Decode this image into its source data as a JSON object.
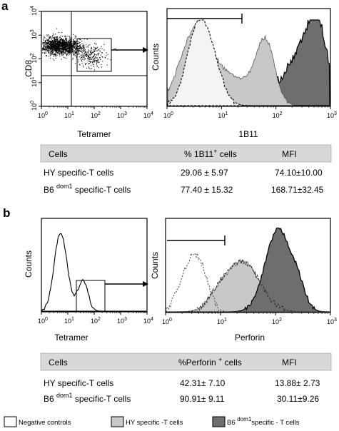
{
  "panel_a": {
    "letter": "a",
    "dotplot": {
      "ylabel": "CD8",
      "xlabel": "Tetramer",
      "x_ticks": [
        {
          "base": "10",
          "exp": "0"
        },
        {
          "base": "10",
          "exp": "1"
        },
        {
          "base": "10",
          "exp": "2"
        },
        {
          "base": "10",
          "exp": "3"
        },
        {
          "base": "10",
          "exp": "4"
        }
      ],
      "y_ticks": [
        {
          "base": "10",
          "exp": "0"
        },
        {
          "base": "10",
          "exp": "1"
        },
        {
          "base": "10",
          "exp": "2"
        },
        {
          "base": "10",
          "exp": "3"
        },
        {
          "base": "10",
          "exp": "4"
        }
      ]
    },
    "histogram": {
      "ylabel": "Counts",
      "xlabel": "1B11",
      "x_ticks": [
        {
          "base": "10",
          "exp": "0"
        },
        {
          "base": "10",
          "exp": "1"
        },
        {
          "base": "10",
          "exp": "2"
        },
        {
          "base": "10",
          "exp": "3"
        }
      ]
    },
    "table": {
      "headers": [
        {
          "main": "Cells",
          "sup": ""
        },
        {
          "main": "% 1B11",
          "sup": "+",
          "tail": " cells"
        },
        {
          "main": "MFI",
          "sup": ""
        }
      ],
      "rows": [
        {
          "cell_main": "HY  specific-T cells",
          "cell_sup": "",
          "cell_tail": "",
          "pct": "29.06 ± 5.97",
          "mfi": "74.10±10.00"
        },
        {
          "cell_main": "B6 ",
          "cell_sup": "dom1",
          "cell_tail": " specific-T cells",
          "pct": "77.40 ± 15.32",
          "mfi": "168.71±32.45"
        }
      ]
    }
  },
  "panel_b": {
    "letter": "b",
    "histogram_left": {
      "ylabel": "Counts",
      "xlabel": "Tetramer",
      "x_ticks": [
        {
          "base": "10",
          "exp": "0"
        },
        {
          "base": "10",
          "exp": "1"
        },
        {
          "base": "10",
          "exp": "2"
        },
        {
          "base": "10",
          "exp": "3"
        },
        {
          "base": "10",
          "exp": "4"
        }
      ]
    },
    "histogram_right": {
      "ylabel": "Counts",
      "xlabel": "Perforin",
      "x_ticks": [
        {
          "base": "10",
          "exp": "0"
        },
        {
          "base": "10",
          "exp": "1"
        },
        {
          "base": "10",
          "exp": "2"
        },
        {
          "base": "10",
          "exp": "3"
        }
      ]
    },
    "table": {
      "headers": [
        {
          "main": "Cells",
          "sup": ""
        },
        {
          "main": "%Perforin ",
          "sup": "+",
          "tail": " cells"
        },
        {
          "main": "MFI",
          "sup": ""
        }
      ],
      "rows": [
        {
          "cell_main": "HY  specific-T cells",
          "cell_sup": "",
          "cell_tail": "",
          "pct": "42.31± 7.10",
          "mfi": "13.88± 2.73"
        },
        {
          "cell_main": "B6 ",
          "cell_sup": "dom1",
          "cell_tail": " specific-T cells",
          "pct": "90.91± 9.11",
          "mfi": "30.11±9.26"
        }
      ]
    }
  },
  "legend": [
    {
      "main": "Negative controls",
      "sup": "",
      "tail": "",
      "fill": "#ffffff",
      "dashed": true
    },
    {
      "main": "HY specific -T cells",
      "sup": "",
      "tail": "",
      "fill": "#c8c8c8",
      "dashed": false
    },
    {
      "main": "B6 ",
      "sup": "dom1",
      "tail": "specific - T cells",
      "fill": "#6e6e6e",
      "dashed": false
    }
  ],
  "colors": {
    "table_header_bg": "#d8d8d8",
    "negative_fill": "#ffffff",
    "hy_fill": "#c8c8c8",
    "b6_fill": "#6e6e6e"
  }
}
